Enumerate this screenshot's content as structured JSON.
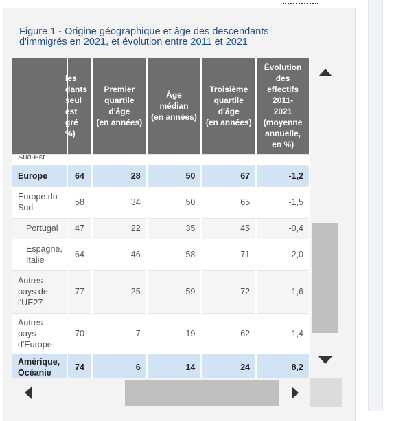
{
  "title": "Figure 1 - Origine géographique et âge des descendants d'immigrés en 2021, et évolution entre 2011 et 2021",
  "columns": [
    {
      "label": "les\ndants\nseul\nest\ngré\n%)"
    },
    {
      "label": "Premier\nquartile\nd'âge\n(en années)"
    },
    {
      "label": "Âge\nmédian\n(en années)"
    },
    {
      "label": "Troisième\nquartile\nd'âge\n(en années)"
    },
    {
      "label": "Évolution\ndes\neffectifs\n2011-\n2021\n(moyenne\nannuelle,\nen %)"
    }
  ],
  "cut_row_label": "Sud-Est",
  "rows": [
    {
      "label": "Europe",
      "type": "group",
      "values": [
        "64",
        "28",
        "50",
        "67",
        "-1,2"
      ]
    },
    {
      "label": "Europe du Sud",
      "type": "plain",
      "values": [
        "58",
        "34",
        "50",
        "65",
        "-1,5"
      ]
    },
    {
      "label": "Portugal",
      "type": "alt",
      "sub": true,
      "values": [
        "47",
        "22",
        "35",
        "45",
        "-0,4"
      ]
    },
    {
      "label": "Espagne, Italie",
      "type": "plain",
      "sub": true,
      "values": [
        "64",
        "46",
        "58",
        "71",
        "-2,0"
      ]
    },
    {
      "label": "Autres pays de l'UE27",
      "type": "alt",
      "values": [
        "77",
        "25",
        "59",
        "72",
        "-1,6"
      ]
    },
    {
      "label": "Autres pays d'Europe",
      "type": "plain",
      "values": [
        "70",
        "7",
        "19",
        "62",
        "1,4"
      ]
    },
    {
      "label": "Amérique, Océanie",
      "type": "group",
      "values": [
        "74",
        "6",
        "14",
        "24",
        "8,2"
      ]
    }
  ]
}
